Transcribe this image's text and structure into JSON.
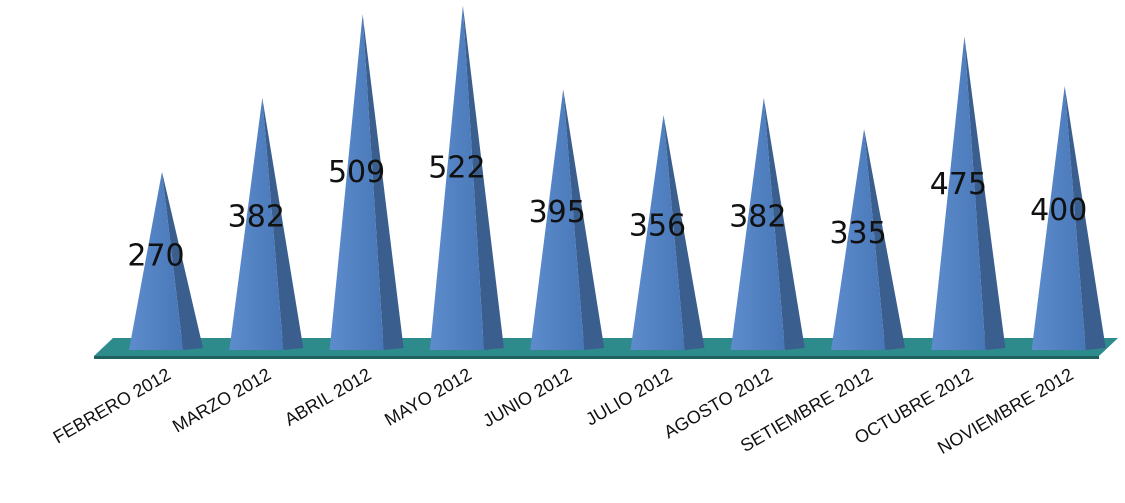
{
  "chart_data": {
    "type": "bar",
    "shape": "pyramid-3d",
    "categories": [
      "FEBRERO 2012",
      "MARZO 2012",
      "ABRIL 2012",
      "MAYO 2012",
      "JUNIO 2012",
      "JULIO 2012",
      "AGOSTO 2012",
      "SETIEMBRE 2012",
      "OCTUBRE 2012",
      "NOVIEMBRE 2012"
    ],
    "values": [
      270,
      382,
      509,
      522,
      395,
      356,
      382,
      335,
      475,
      400
    ],
    "title": "",
    "xlabel": "",
    "ylabel": "",
    "grid": false,
    "legend": "none",
    "colors": {
      "front": "#4f81bd",
      "side": "#3a5f8f",
      "floor": "#2e8b8b",
      "floor_edge": "#1f5f5f"
    }
  }
}
